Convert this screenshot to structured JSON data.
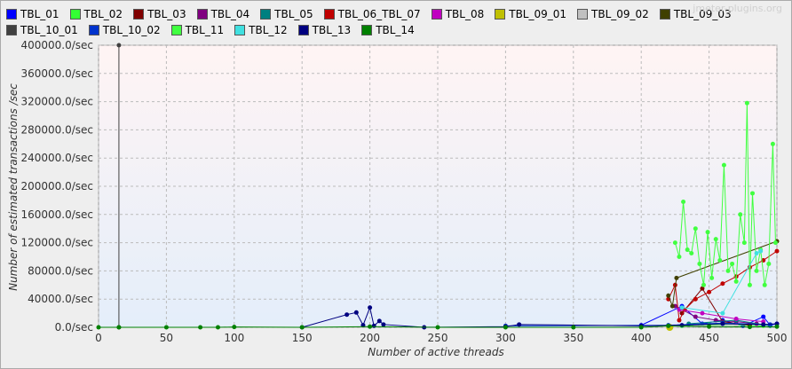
{
  "chart_data": {
    "type": "line",
    "x_label": "Number of active threads",
    "y_label": "Number of estimated transactions /sec",
    "watermark": "jmeter-plugins.org",
    "xlim": [
      0,
      500
    ],
    "ylim": [
      0,
      400000
    ],
    "xticks": [
      0,
      50,
      100,
      150,
      200,
      250,
      300,
      350,
      400,
      450,
      500
    ],
    "yticks": [
      {
        "value": 0,
        "label": "0.0/sec"
      },
      {
        "value": 40000,
        "label": "40000.0/sec"
      },
      {
        "value": 80000,
        "label": "80000.0/sec"
      },
      {
        "value": 120000,
        "label": "120000.0/sec"
      },
      {
        "value": 160000,
        "label": "160000.0/sec"
      },
      {
        "value": 200000,
        "label": "200000.0/sec"
      },
      {
        "value": 240000,
        "label": "240000.0/sec"
      },
      {
        "value": 280000,
        "label": "280000.0/sec"
      },
      {
        "value": 320000,
        "label": "320000.0/sec"
      },
      {
        "value": 360000,
        "label": "360000.0/sec"
      },
      {
        "value": 400000,
        "label": "400000.0/sec"
      }
    ],
    "grid": true,
    "series": [
      {
        "name": "TBL_01",
        "color": "#0000ff",
        "x": [
          400,
          430,
          445,
          460,
          475,
          490,
          495,
          500
        ],
        "values": [
          3000,
          30000,
          5000,
          10000,
          2000,
          15000,
          3000,
          5000
        ]
      },
      {
        "name": "TBL_02",
        "color": "#33ff33",
        "x": [
          430,
          450,
          470,
          490
        ],
        "values": [
          2000,
          4000,
          3000,
          2000
        ]
      },
      {
        "name": "TBL_03",
        "color": "#800000",
        "x": [
          430,
          445,
          460,
          480
        ],
        "values": [
          20000,
          55000,
          8000,
          3000
        ]
      },
      {
        "name": "TBL_04",
        "color": "#800080",
        "x": [
          425,
          440,
          455,
          470,
          485
        ],
        "values": [
          30000,
          15000,
          10000,
          8000,
          5000
        ]
      },
      {
        "name": "TBL_05",
        "color": "#008080",
        "x": [
          435,
          470,
          495
        ],
        "values": [
          5000,
          10000,
          2000
        ]
      },
      {
        "name": "TBL_06_TBL_07",
        "color": "#c00000",
        "x": [
          420,
          425,
          428,
          432,
          440,
          450,
          460,
          470,
          480,
          490,
          500
        ],
        "values": [
          40000,
          60000,
          10000,
          25000,
          40000,
          50000,
          62000,
          72000,
          85000,
          95000,
          108000
        ]
      },
      {
        "name": "TBL_08",
        "color": "#c000c0",
        "x": [
          428,
          445,
          470,
          490
        ],
        "values": [
          25000,
          20000,
          12000,
          8000
        ]
      },
      {
        "name": "TBL_09_01",
        "color": "#c0c000",
        "x": [
          421
        ],
        "values": [
          0
        ]
      },
      {
        "name": "TBL_09_02",
        "color": "#c0c0c0",
        "x": [
          440,
          470
        ],
        "values": [
          2000,
          3000
        ]
      },
      {
        "name": "TBL_09_03",
        "color": "#404000",
        "x": [
          420,
          423,
          426,
          500
        ],
        "values": [
          45000,
          30000,
          70000,
          122000
        ]
      },
      {
        "name": "TBL_10_01",
        "color": "#404040",
        "x": [
          15,
          15
        ],
        "values": [
          0,
          400000
        ]
      },
      {
        "name": "TBL_10_02",
        "color": "#0033cc",
        "x": [
          300,
          420,
          460,
          495
        ],
        "values": [
          2000,
          3000,
          6000,
          4000
        ]
      },
      {
        "name": "TBL_11",
        "color": "#40ff40",
        "x": [
          425,
          428,
          431,
          434,
          437,
          440,
          443,
          446,
          449,
          452,
          455,
          458,
          461,
          464,
          467,
          470,
          473,
          476,
          478,
          480,
          482,
          485,
          488,
          491,
          494,
          497,
          499
        ],
        "values": [
          120000,
          100000,
          178000,
          110000,
          105000,
          140000,
          90000,
          60000,
          135000,
          70000,
          125000,
          95000,
          230000,
          80000,
          90000,
          65000,
          160000,
          120000,
          318000,
          60000,
          190000,
          80000,
          110000,
          60000,
          90000,
          260000,
          120000
        ]
      },
      {
        "name": "TBL_12",
        "color": "#40e0e0",
        "x": [
          430,
          460,
          485,
          488
        ],
        "values": [
          28000,
          20000,
          105000,
          108000
        ]
      },
      {
        "name": "TBL_13",
        "color": "#000080",
        "x": [
          150,
          183,
          190,
          195,
          200,
          203,
          207,
          210,
          240,
          300,
          310,
          400,
          430,
          460,
          490,
          500
        ],
        "values": [
          0,
          18000,
          21000,
          3000,
          28000,
          2000,
          9000,
          4000,
          0,
          1000,
          4000,
          2000,
          3000,
          5000,
          4000,
          5000
        ]
      },
      {
        "name": "TBL_14",
        "color": "#008000",
        "x": [
          0,
          15,
          50,
          75,
          88,
          100,
          150,
          200,
          250,
          300,
          350,
          400,
          420,
          450,
          480,
          500
        ],
        "values": [
          0,
          0,
          0,
          0,
          0,
          500,
          0,
          1000,
          0,
          0,
          0,
          0,
          2000,
          1000,
          500,
          1000
        ]
      }
    ]
  }
}
